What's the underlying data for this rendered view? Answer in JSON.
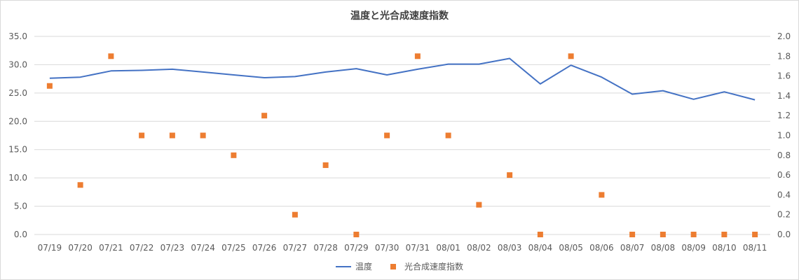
{
  "chart_data": {
    "type": "line",
    "title": "温度と光合成速度指数",
    "categories": [
      "07/19",
      "07/20",
      "07/21",
      "07/22",
      "07/23",
      "07/24",
      "07/25",
      "07/26",
      "07/27",
      "07/28",
      "07/29",
      "07/30",
      "07/31",
      "08/01",
      "08/02",
      "08/03",
      "08/04",
      "08/05",
      "08/06",
      "08/07",
      "08/08",
      "08/09",
      "08/10",
      "08/11"
    ],
    "y_left": {
      "min": 0,
      "max": 35,
      "step": 5,
      "tick_labels": [
        "0.0",
        "5.0",
        "10.0",
        "15.0",
        "20.0",
        "25.0",
        "30.0",
        "35.0"
      ]
    },
    "y_right": {
      "min": 0,
      "max": 2.0,
      "step": 0.2,
      "tick_labels": [
        "0.0",
        "0.2",
        "0.4",
        "0.6",
        "0.8",
        "1.0",
        "1.2",
        "1.4",
        "1.6",
        "1.8",
        "2.0"
      ]
    },
    "grid": true,
    "legend_position": "bottom",
    "series": [
      {
        "name": "温度",
        "mark": "line",
        "axis": "left",
        "color": "#4472c4",
        "values": [
          27.6,
          27.8,
          28.9,
          29.0,
          29.2,
          28.7,
          28.2,
          27.7,
          27.9,
          28.7,
          29.3,
          28.2,
          29.2,
          30.1,
          30.1,
          31.1,
          26.6,
          29.9,
          27.8,
          24.8,
          25.4,
          23.9,
          25.2,
          23.8
        ]
      },
      {
        "name": "光合成速度指数",
        "mark": "square",
        "axis": "right",
        "color": "#ed7d31",
        "values": [
          1.5,
          0.5,
          1.8,
          1.0,
          1.0,
          1.0,
          0.8,
          1.2,
          0.2,
          0.7,
          0.0,
          1.0,
          1.8,
          1.0,
          0.3,
          0.6,
          0.0,
          1.8,
          0.4,
          0.0,
          0.0,
          0.0,
          0.0,
          0.0
        ]
      }
    ]
  }
}
